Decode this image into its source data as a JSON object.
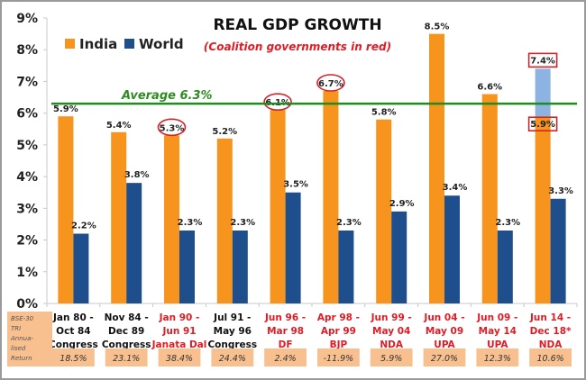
{
  "chart_data": {
    "type": "bar",
    "title": "REAL GDP GROWTH",
    "subtitle": "(Coalition governments in red)",
    "xlabel": "",
    "ylabel": "",
    "ylim": [
      0,
      9
    ],
    "yticks": [
      "0%",
      "1%",
      "2%",
      "3%",
      "4%",
      "5%",
      "6%",
      "7%",
      "8%",
      "9%"
    ],
    "grid": false,
    "legend": "top-left",
    "categories": [
      {
        "line1": "Jan 80 -",
        "line2": "Oct 84",
        "line3": "Congress",
        "coalition": false
      },
      {
        "line1": "Nov 84 -",
        "line2": "Dec 89",
        "line3": "Congress",
        "coalition": false
      },
      {
        "line1": "Jan 90 -",
        "line2": "Jun 91",
        "line3": "Janata Dal",
        "coalition": true
      },
      {
        "line1": "Jul 91 -",
        "line2": "May 96",
        "line3": "Congress",
        "coalition": false
      },
      {
        "line1": "Jun 96 -",
        "line2": "Mar 98",
        "line3": "DF",
        "coalition": true
      },
      {
        "line1": "Apr 98 -",
        "line2": "Apr 99",
        "line3": "BJP",
        "coalition": true
      },
      {
        "line1": "Jun 99 -",
        "line2": "May 04",
        "line3": "NDA",
        "coalition": true
      },
      {
        "line1": "Jun 04 -",
        "line2": "May 09",
        "line3": "UPA",
        "coalition": true
      },
      {
        "line1": "Jun 09 -",
        "line2": "May 14",
        "line3": "UPA",
        "coalition": true
      },
      {
        "line1": "Jun 14 -",
        "line2": "Dec 18*",
        "line3": "NDA",
        "coalition": true
      }
    ],
    "series": [
      {
        "name": "India",
        "color": "#f7941d",
        "values": [
          5.9,
          5.4,
          5.3,
          5.2,
          6.1,
          6.7,
          5.8,
          8.5,
          6.6,
          5.9
        ],
        "labels": [
          "5.9%",
          "5.4%",
          "5.3%",
          "5.2%",
          "6.1%",
          "6.7%",
          "5.8%",
          "8.5%",
          "6.6%",
          "5.9%"
        ]
      },
      {
        "name": "World",
        "color": "#1f4e8c",
        "values": [
          2.2,
          3.8,
          2.3,
          2.3,
          3.5,
          2.3,
          2.9,
          3.4,
          2.3,
          3.3
        ],
        "labels": [
          "2.2%",
          "3.8%",
          "2.3%",
          "2.3%",
          "3.5%",
          "2.3%",
          "2.9%",
          "3.4%",
          "2.3%",
          "3.3%"
        ]
      }
    ],
    "stacked_extra": {
      "category_index": 9,
      "value": 7.4,
      "label": "7.4%",
      "color": "#8db3e2"
    },
    "highlighted_circles": [
      2,
      4,
      5
    ],
    "highlighted_boxes": [
      9
    ],
    "average_line": {
      "value": 6.3,
      "label": "Average 6.3%",
      "color": "#1e8c1e"
    },
    "bse_returns": {
      "row_label": [
        "BSE-30",
        "TRI",
        "Annua-",
        "lised",
        "Return"
      ],
      "values": [
        "18.5%",
        "23.1%",
        "38.4%",
        "24.4%",
        "2.4%",
        "-11.9%",
        "5.9%",
        "27.0%",
        "12.3%",
        "10.6%"
      ],
      "color": "#f9c08f"
    },
    "colors": {
      "coalition_text": "#e01b24",
      "normal_text": "#111111"
    }
  }
}
